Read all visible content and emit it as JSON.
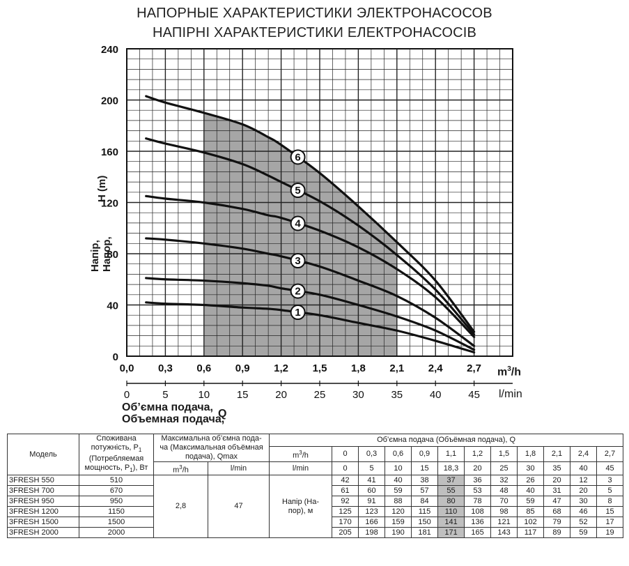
{
  "titles": [
    "НАПОРНЫЕ ХАРАКТЕРИСТИКИ ЭЛЕКТРОНАСОСОВ",
    "НАПІРНІ ХАРАКТЕРИСТИКИ ЕЛЕКТРОНАСОСІВ"
  ],
  "axis": {
    "ylabel_line1": "Напір,",
    "ylabel_line2": "Напор,",
    "ylabel_symbol": "H (m)",
    "xlabel_line1": "Об’ємна подача,",
    "xlabel_line2": "Объемная подача,",
    "xlabel_symbol": "Q",
    "x_unit_m3": "m",
    "x_unit_m3_sup": "3",
    "x_unit_m3_tail": "/h",
    "x_unit_lmin": "l/min"
  },
  "chart_data": {
    "type": "line",
    "x_ticks_m3h": [
      "0,0",
      "0,3",
      "0,6",
      "0,9",
      "1,2",
      "1,5",
      "1,8",
      "2,1",
      "2,4",
      "2,7"
    ],
    "x_ticks_lmin": [
      "0",
      "5",
      "10",
      "15",
      "20",
      "25",
      "30",
      "35",
      "40",
      "45"
    ],
    "y_ticks": [
      "0",
      "40",
      "80",
      "120",
      "160",
      "200",
      "240"
    ],
    "xlim": [
      0,
      3.0
    ],
    "ylim": [
      0,
      240
    ],
    "grid": true,
    "shaded_region": {
      "x_from": 0.6,
      "x_to": 2.1,
      "note_color": "#a6a6a6"
    },
    "series": [
      {
        "name": "1",
        "x": [
          0.15,
          0.3,
          0.6,
          0.9,
          1.1,
          1.2,
          1.5,
          1.8,
          2.1,
          2.4,
          2.7
        ],
        "y": [
          42,
          41,
          40,
          38,
          37,
          36,
          32,
          26,
          20,
          12,
          3
        ]
      },
      {
        "name": "2",
        "x": [
          0.15,
          0.3,
          0.6,
          0.9,
          1.1,
          1.2,
          1.5,
          1.8,
          2.1,
          2.4,
          2.7
        ],
        "y": [
          61,
          60,
          59,
          57,
          55,
          53,
          48,
          40,
          31,
          20,
          5
        ]
      },
      {
        "name": "3",
        "x": [
          0.15,
          0.3,
          0.6,
          0.9,
          1.1,
          1.2,
          1.5,
          1.8,
          2.1,
          2.4,
          2.7
        ],
        "y": [
          92,
          91,
          88,
          84,
          80,
          78,
          70,
          59,
          47,
          30,
          8
        ]
      },
      {
        "name": "4",
        "x": [
          0.15,
          0.3,
          0.6,
          0.9,
          1.1,
          1.2,
          1.5,
          1.8,
          2.1,
          2.4,
          2.7
        ],
        "y": [
          125,
          123,
          120,
          115,
          110,
          108,
          98,
          85,
          68,
          46,
          15
        ]
      },
      {
        "name": "5",
        "x": [
          0.15,
          0.3,
          0.6,
          0.9,
          1.1,
          1.2,
          1.5,
          1.8,
          2.1,
          2.4,
          2.7
        ],
        "y": [
          170,
          166,
          159,
          150,
          141,
          136,
          121,
          102,
          79,
          52,
          17
        ]
      },
      {
        "name": "6",
        "x": [
          0.15,
          0.3,
          0.6,
          0.9,
          1.1,
          1.2,
          1.5,
          1.8,
          2.1,
          2.4,
          2.7
        ],
        "y": [
          203,
          198,
          190,
          181,
          171,
          165,
          143,
          117,
          89,
          59,
          19
        ]
      }
    ]
  },
  "table": {
    "h_model": "Модель",
    "h_power_1": "Споживана",
    "h_power_2": "потужність, P",
    "h_power_3": "(Потребляемая",
    "h_power_4": "мощность, P",
    "h_power_4b": "), Вт",
    "h_power_sub": "1",
    "h_qmax_1": "Максимальна об’ємна пода-",
    "h_qmax_2": "ча (Максимальная объёмная",
    "h_qmax_3": "подача), Qmax",
    "h_flow": "Об’ємна подача (Объёмная подача), Q",
    "h_m3": "m",
    "h_m3_sup": "3",
    "h_m3_tail": "/h",
    "h_lmin": "l/min",
    "flow_m3h": [
      "0",
      "0,3",
      "0,6",
      "0,9",
      "1,1",
      "1,2",
      "1,5",
      "1,8",
      "2,1",
      "2,4",
      "2,7"
    ],
    "flow_lmin": [
      "0",
      "5",
      "10",
      "15",
      "18,3",
      "20",
      "25",
      "30",
      "35",
      "40",
      "45"
    ],
    "qmax_m3h": "2,8",
    "qmax_lmin": "47",
    "head_label_1": "Напір (На-",
    "head_label_2": "пор), м",
    "models": [
      {
        "name": "3FRESH 550",
        "power": "510",
        "heads": [
          "42",
          "41",
          "40",
          "38",
          "37",
          "36",
          "32",
          "26",
          "20",
          "12",
          "3"
        ]
      },
      {
        "name": "3FRESH 700",
        "power": "670",
        "heads": [
          "61",
          "60",
          "59",
          "57",
          "55",
          "53",
          "48",
          "40",
          "31",
          "20",
          "5"
        ]
      },
      {
        "name": "3FRESH 950",
        "power": "950",
        "heads": [
          "92",
          "91",
          "88",
          "84",
          "80",
          "78",
          "70",
          "59",
          "47",
          "30",
          "8"
        ]
      },
      {
        "name": "3FRESH 1200",
        "power": "1150",
        "heads": [
          "125",
          "123",
          "120",
          "115",
          "110",
          "108",
          "98",
          "85",
          "68",
          "46",
          "15"
        ]
      },
      {
        "name": "3FRESH 1500",
        "power": "1500",
        "heads": [
          "170",
          "166",
          "159",
          "150",
          "141",
          "136",
          "121",
          "102",
          "79",
          "52",
          "17"
        ]
      },
      {
        "name": "3FRESH 2000",
        "power": "2000",
        "heads": [
          "205",
          "198",
          "190",
          "181",
          "171",
          "165",
          "143",
          "117",
          "89",
          "59",
          "19"
        ]
      }
    ]
  }
}
